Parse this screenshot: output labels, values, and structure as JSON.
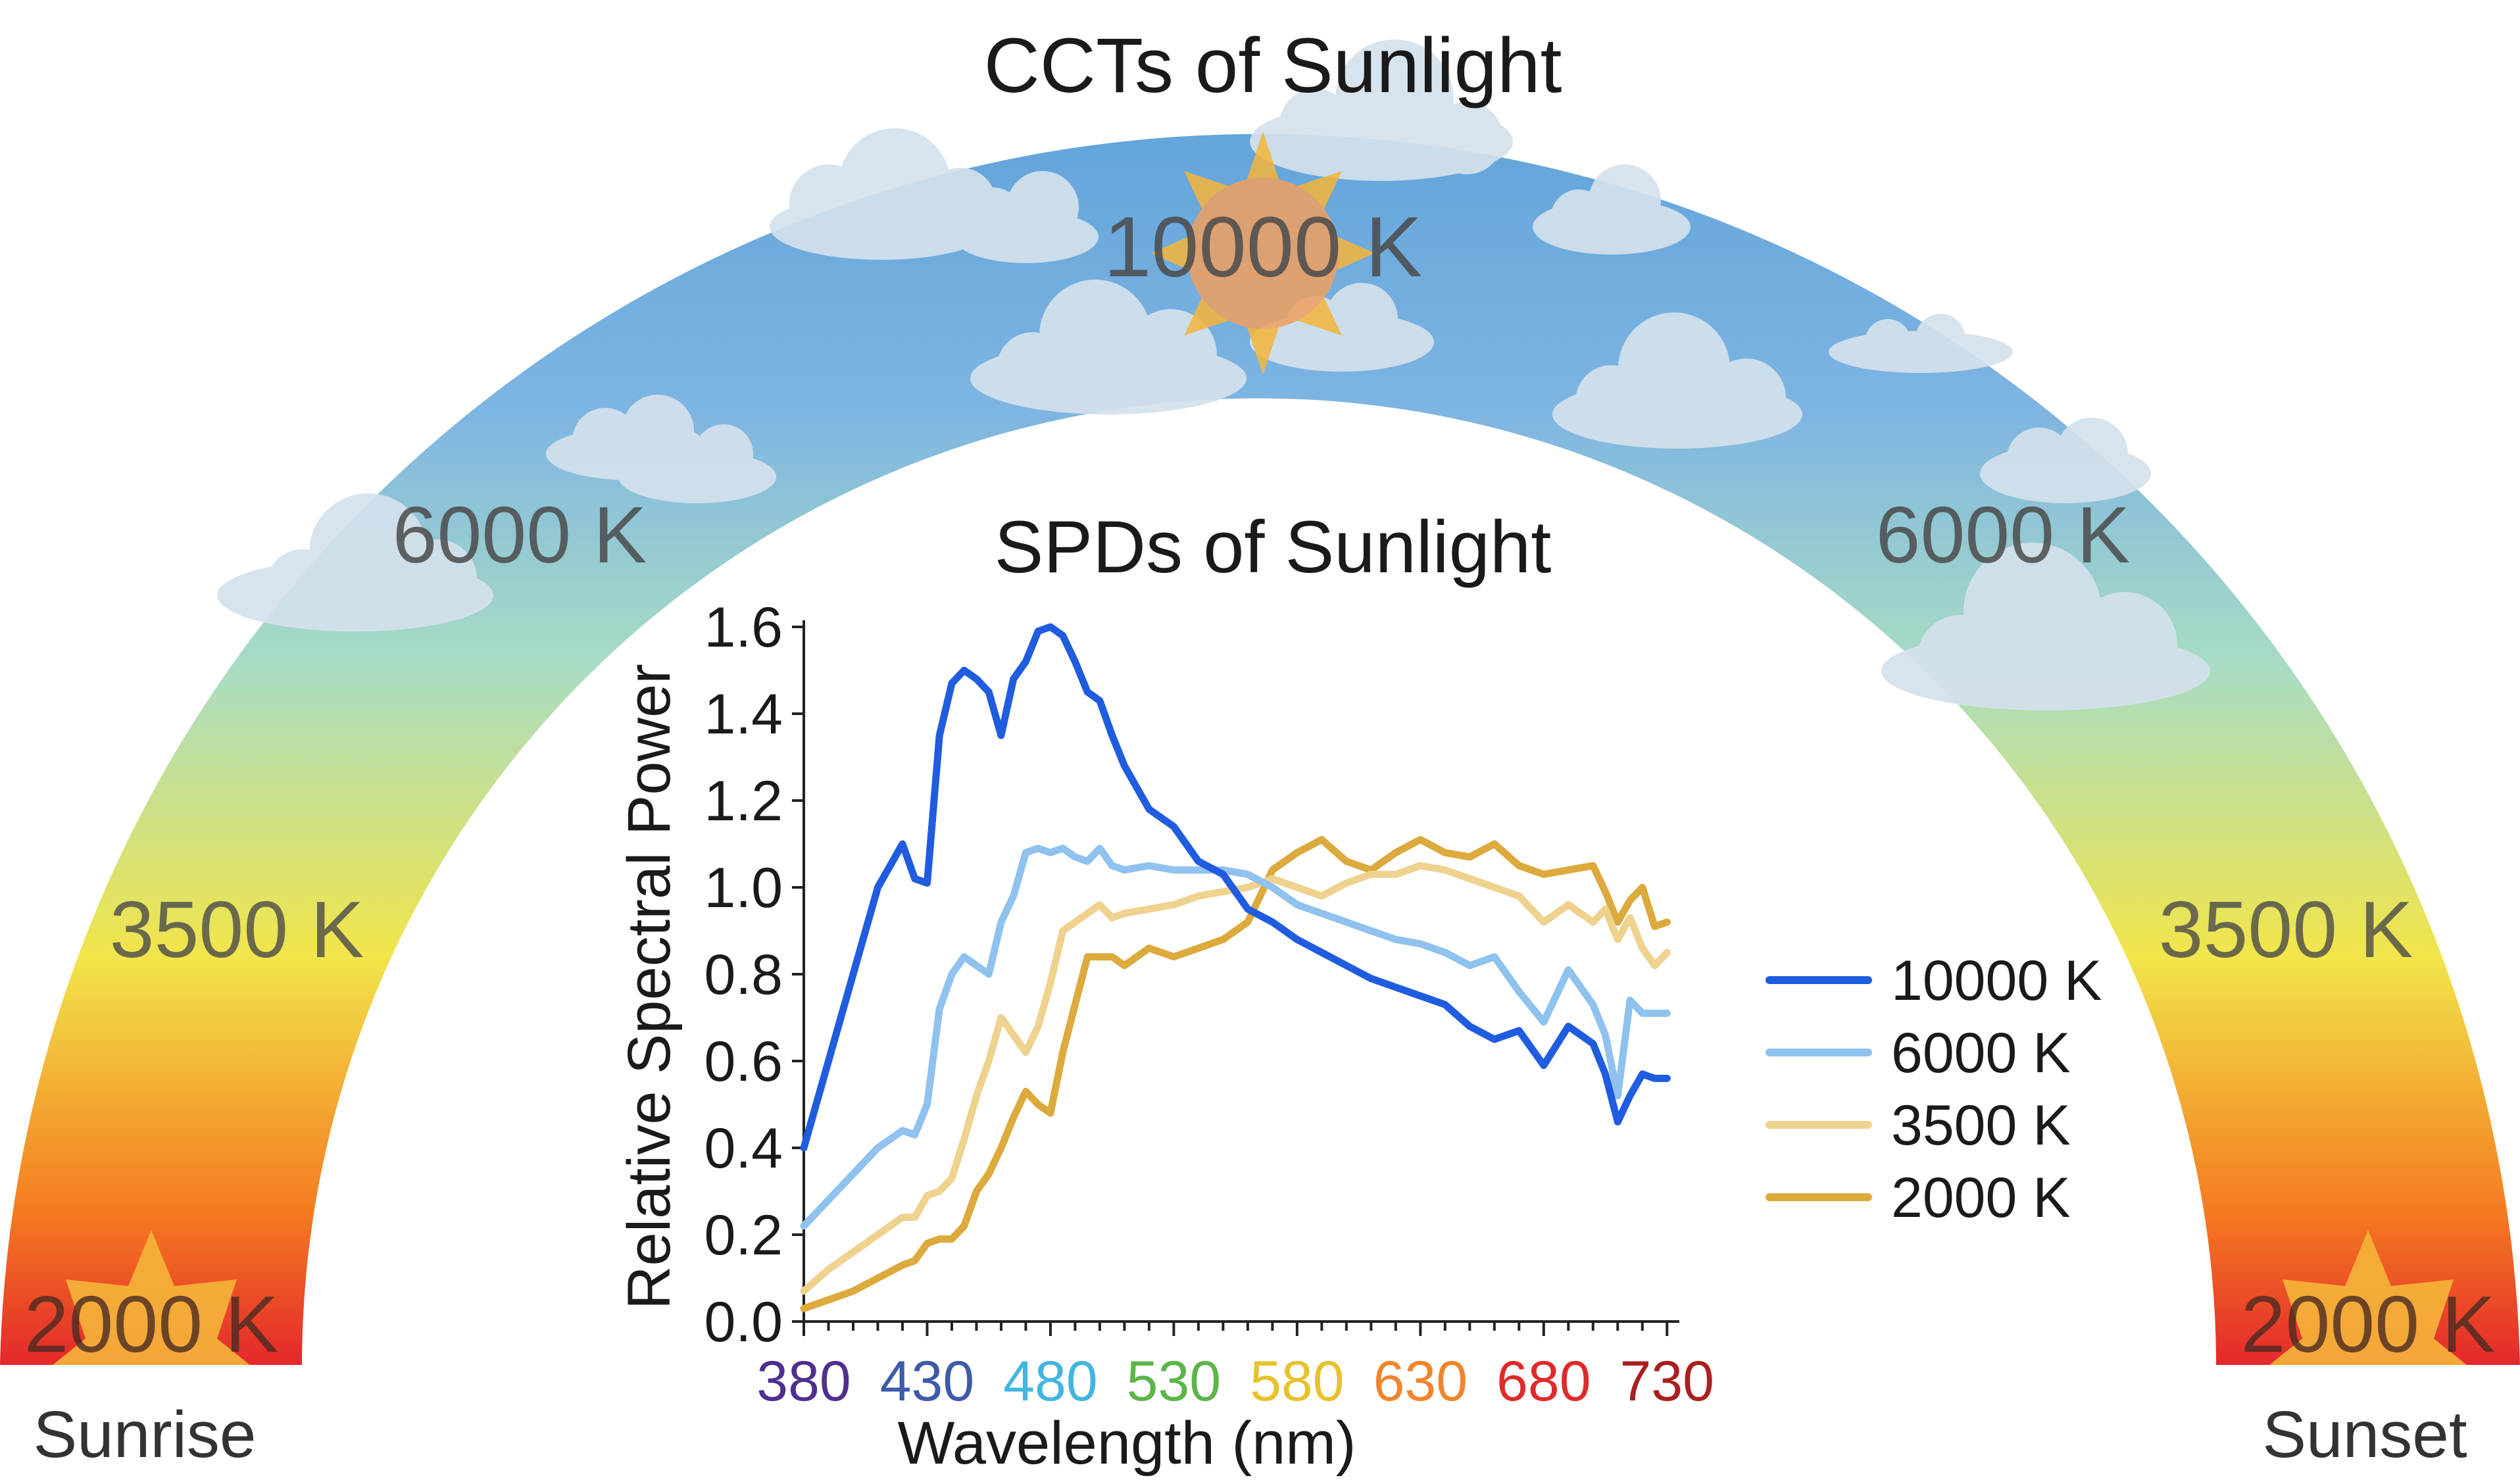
{
  "arc": {
    "title": "CCTs of Sunlight",
    "labels": {
      "top": "10000 K",
      "upper_left": "6000 K",
      "upper_right": "6000 K",
      "middle_left": "3500 K",
      "middle_right": "3500 K",
      "bottom_left": "2000 K",
      "bottom_right": "2000 K"
    },
    "sunrise": "Sunrise",
    "sunset": "Sunset",
    "colors": {
      "red": "#e4282c",
      "orange": "#f47a20",
      "yellow": "#f2e54a",
      "green": "#a8dcc4",
      "blue": "#5fa2d9",
      "cloud": "#d4e1ec",
      "sun": "#f5b53a"
    }
  },
  "chart_data": {
    "type": "line",
    "title": "SPDs of Sunlight",
    "xlabel": "Wavelength (nm)",
    "ylabel": "Relative Spectral Power",
    "xlim": [
      380,
      735
    ],
    "ylim": [
      0,
      1.6
    ],
    "x_ticks": [
      "380",
      "430",
      "480",
      "530",
      "580",
      "630",
      "680",
      "730"
    ],
    "x_tick_colors": [
      "#4f2f8f",
      "#3f5aa8",
      "#43b5e0",
      "#5bb648",
      "#e8c22d",
      "#f0852d",
      "#e02a2a",
      "#a8201f"
    ],
    "y_ticks": [
      "0.0",
      "0.2",
      "0.4",
      "0.6",
      "0.8",
      "1.0",
      "1.2",
      "1.4",
      "1.6"
    ],
    "grid": false,
    "legend_position": "right",
    "series": [
      {
        "name": "10000 K",
        "color": "#1f5ce0",
        "x": [
          380,
          390,
          400,
          410,
          420,
          425,
          430,
          435,
          440,
          445,
          450,
          455,
          460,
          465,
          470,
          475,
          480,
          485,
          490,
          495,
          500,
          505,
          510,
          520,
          530,
          540,
          550,
          560,
          570,
          580,
          590,
          600,
          610,
          620,
          630,
          640,
          650,
          660,
          670,
          680,
          690,
          700,
          705,
          710,
          715,
          720,
          725,
          730
        ],
        "y": [
          0.4,
          0.6,
          0.8,
          1.0,
          1.1,
          1.02,
          1.01,
          1.35,
          1.47,
          1.5,
          1.48,
          1.45,
          1.35,
          1.48,
          1.52,
          1.59,
          1.6,
          1.58,
          1.52,
          1.45,
          1.43,
          1.35,
          1.28,
          1.18,
          1.14,
          1.06,
          1.03,
          0.95,
          0.92,
          0.88,
          0.85,
          0.82,
          0.79,
          0.77,
          0.75,
          0.73,
          0.68,
          0.65,
          0.67,
          0.59,
          0.68,
          0.64,
          0.57,
          0.46,
          0.52,
          0.57,
          0.56,
          0.56
        ]
      },
      {
        "name": "6000 K",
        "color": "#8fc2ee",
        "x": [
          380,
          390,
          400,
          410,
          420,
          425,
          430,
          435,
          440,
          445,
          450,
          455,
          460,
          465,
          470,
          475,
          480,
          485,
          490,
          495,
          500,
          505,
          510,
          520,
          530,
          540,
          550,
          560,
          570,
          580,
          590,
          600,
          610,
          620,
          630,
          640,
          650,
          660,
          670,
          680,
          690,
          700,
          705,
          710,
          715,
          720,
          725,
          730
        ],
        "y": [
          0.22,
          0.28,
          0.34,
          0.4,
          0.44,
          0.43,
          0.5,
          0.72,
          0.8,
          0.84,
          0.82,
          0.8,
          0.92,
          0.98,
          1.08,
          1.09,
          1.08,
          1.09,
          1.07,
          1.06,
          1.09,
          1.05,
          1.04,
          1.05,
          1.04,
          1.04,
          1.04,
          1.03,
          1.0,
          0.96,
          0.94,
          0.92,
          0.9,
          0.88,
          0.87,
          0.85,
          0.82,
          0.84,
          0.76,
          0.69,
          0.81,
          0.73,
          0.66,
          0.52,
          0.74,
          0.71,
          0.71,
          0.71
        ]
      },
      {
        "name": "3500 K",
        "color": "#eed28e",
        "x": [
          380,
          390,
          400,
          410,
          420,
          425,
          430,
          435,
          440,
          445,
          450,
          455,
          460,
          465,
          470,
          475,
          480,
          485,
          490,
          495,
          500,
          505,
          510,
          520,
          530,
          540,
          550,
          560,
          570,
          580,
          590,
          600,
          610,
          620,
          630,
          640,
          650,
          660,
          670,
          680,
          690,
          700,
          705,
          710,
          715,
          720,
          725,
          730
        ],
        "y": [
          0.07,
          0.12,
          0.16,
          0.2,
          0.24,
          0.24,
          0.29,
          0.3,
          0.33,
          0.42,
          0.52,
          0.6,
          0.7,
          0.66,
          0.62,
          0.68,
          0.78,
          0.9,
          0.92,
          0.94,
          0.96,
          0.93,
          0.94,
          0.95,
          0.96,
          0.98,
          0.99,
          1.0,
          1.02,
          1.0,
          0.98,
          1.01,
          1.03,
          1.03,
          1.05,
          1.04,
          1.02,
          1.0,
          0.98,
          0.92,
          0.96,
          0.92,
          0.95,
          0.88,
          0.93,
          0.86,
          0.82,
          0.85
        ]
      },
      {
        "name": "2000 K",
        "color": "#dcaa3d",
        "x": [
          380,
          390,
          400,
          410,
          420,
          425,
          430,
          435,
          440,
          445,
          450,
          455,
          460,
          465,
          470,
          475,
          480,
          485,
          490,
          495,
          500,
          505,
          510,
          520,
          530,
          540,
          550,
          560,
          570,
          580,
          590,
          600,
          610,
          620,
          630,
          640,
          650,
          660,
          670,
          680,
          690,
          700,
          705,
          710,
          715,
          720,
          725,
          730
        ],
        "y": [
          0.03,
          0.05,
          0.07,
          0.1,
          0.13,
          0.14,
          0.18,
          0.19,
          0.19,
          0.22,
          0.3,
          0.34,
          0.4,
          0.47,
          0.53,
          0.5,
          0.48,
          0.62,
          0.73,
          0.84,
          0.84,
          0.84,
          0.82,
          0.86,
          0.84,
          0.86,
          0.88,
          0.92,
          1.04,
          1.08,
          1.11,
          1.06,
          1.04,
          1.08,
          1.11,
          1.08,
          1.07,
          1.1,
          1.05,
          1.03,
          1.04,
          1.05,
          0.99,
          0.92,
          0.97,
          1.0,
          0.91,
          0.92
        ]
      }
    ]
  }
}
